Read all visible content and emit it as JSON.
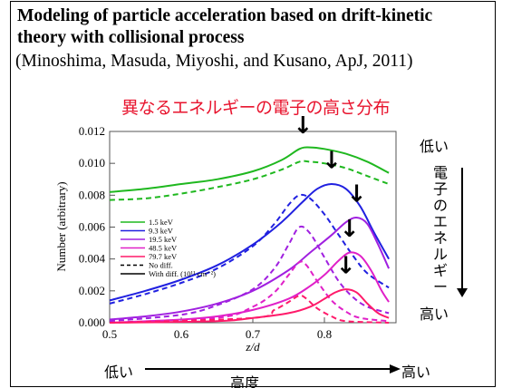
{
  "slide": {
    "title_line1": "Modeling of particle acceleration based on drift-kinetic",
    "title_line2": "theory with collisional process",
    "citation": "(Minoshima, Masuda, Miyoshi, and Kusano, ApJ, 2011)",
    "red_heading": "異なるエネルギーの電子の高さ分布",
    "right_top": "低い",
    "right_middle": "電子のエネルギー",
    "right_bottom": "高い",
    "bottom_left": "低い",
    "bottom_center": "高度",
    "bottom_right": "高い"
  },
  "chart_data": {
    "type": "line",
    "xlabel": "z/d",
    "ylabel": "Number (arbitrary)",
    "xlim": [
      0.5,
      0.9
    ],
    "ylim": [
      0.0,
      0.012
    ],
    "xticks": [
      "0.5",
      "0.6",
      "0.7",
      "0.8"
    ],
    "yticks": [
      "0.000",
      "0.002",
      "0.004",
      "0.006",
      "0.008",
      "0.010",
      "0.012"
    ],
    "legend": [
      "1.5 keV",
      "9.3 keV",
      "19.5 keV",
      "48.5 keV",
      "79.7 keV",
      "No diff.",
      "With diff. (10¹¹ cm⁻²)"
    ],
    "legend_colors": [
      "#1fb81f",
      "#2020e0",
      "#a020e0",
      "#e020c8",
      "#ff1a6a",
      "#000000",
      "#000000"
    ],
    "legend_styles": [
      "solid",
      "solid",
      "solid",
      "solid",
      "solid",
      "dashed",
      "solid"
    ],
    "series": [
      {
        "name": "1.5 keV",
        "style": "solid",
        "color": "#1fb81f",
        "x": [
          0.5,
          0.55,
          0.6,
          0.65,
          0.7,
          0.74,
          0.765,
          0.78,
          0.8,
          0.83,
          0.86,
          0.89
        ],
        "y": [
          0.0082,
          0.0084,
          0.0087,
          0.009,
          0.0095,
          0.0102,
          0.0109,
          0.011,
          0.0109,
          0.0106,
          0.0101,
          0.0094
        ]
      },
      {
        "name": "1.5 keV",
        "style": "dashed",
        "color": "#1fb81f",
        "x": [
          0.5,
          0.55,
          0.6,
          0.65,
          0.7,
          0.74,
          0.765,
          0.78,
          0.8,
          0.83,
          0.86,
          0.89
        ],
        "y": [
          0.0077,
          0.0078,
          0.0081,
          0.0085,
          0.009,
          0.0096,
          0.0101,
          0.0101,
          0.01,
          0.0097,
          0.0092,
          0.0087
        ]
      },
      {
        "name": "9.3 keV",
        "style": "solid",
        "color": "#2020e0",
        "x": [
          0.5,
          0.55,
          0.6,
          0.65,
          0.7,
          0.74,
          0.77,
          0.79,
          0.81,
          0.83,
          0.85,
          0.87,
          0.89
        ],
        "y": [
          0.0014,
          0.002,
          0.0027,
          0.0036,
          0.0049,
          0.0063,
          0.0076,
          0.0084,
          0.0087,
          0.0084,
          0.0073,
          0.0056,
          0.004
        ]
      },
      {
        "name": "9.3 keV",
        "style": "dashed",
        "color": "#2020e0",
        "x": [
          0.5,
          0.55,
          0.6,
          0.65,
          0.7,
          0.73,
          0.75,
          0.765,
          0.78,
          0.8,
          0.82,
          0.84,
          0.86,
          0.89
        ],
        "y": [
          0.0012,
          0.0018,
          0.0025,
          0.0034,
          0.0048,
          0.0062,
          0.0074,
          0.008,
          0.0078,
          0.0068,
          0.0055,
          0.0042,
          0.0031,
          0.0022
        ]
      },
      {
        "name": "19.5 keV",
        "style": "solid",
        "color": "#a020e0",
        "x": [
          0.5,
          0.55,
          0.6,
          0.65,
          0.7,
          0.75,
          0.78,
          0.81,
          0.83,
          0.845,
          0.86,
          0.875,
          0.89
        ],
        "y": [
          0.0002,
          0.0004,
          0.0007,
          0.0012,
          0.002,
          0.0033,
          0.0044,
          0.0055,
          0.0063,
          0.0066,
          0.0062,
          0.0049,
          0.0034
        ]
      },
      {
        "name": "19.5 keV",
        "style": "dashed",
        "color": "#a020e0",
        "x": [
          0.5,
          0.6,
          0.65,
          0.7,
          0.73,
          0.75,
          0.765,
          0.78,
          0.8,
          0.82,
          0.84,
          0.86,
          0.89
        ],
        "y": [
          0.0001,
          0.0005,
          0.0011,
          0.0021,
          0.0034,
          0.0049,
          0.006,
          0.0056,
          0.0041,
          0.0026,
          0.0016,
          0.001,
          0.0006
        ]
      },
      {
        "name": "48.5 keV",
        "style": "solid",
        "color": "#e020c8",
        "x": [
          0.5,
          0.6,
          0.65,
          0.7,
          0.75,
          0.78,
          0.8,
          0.82,
          0.835,
          0.85,
          0.865,
          0.88,
          0.89
        ],
        "y": [
          0.0,
          0.0002,
          0.0004,
          0.0008,
          0.0015,
          0.0023,
          0.003,
          0.0039,
          0.0044,
          0.0042,
          0.0033,
          0.002,
          0.0013
        ]
      },
      {
        "name": "48.5 keV",
        "style": "dashed",
        "color": "#e020c8",
        "x": [
          0.5,
          0.65,
          0.7,
          0.73,
          0.75,
          0.765,
          0.775,
          0.79,
          0.81,
          0.83,
          0.85,
          0.89
        ],
        "y": [
          0.0,
          0.0003,
          0.001,
          0.0019,
          0.003,
          0.0038,
          0.0036,
          0.0026,
          0.0014,
          0.0007,
          0.0003,
          0.0001
        ]
      },
      {
        "name": "79.7 keV",
        "style": "solid",
        "color": "#ff1a6a",
        "x": [
          0.5,
          0.65,
          0.7,
          0.75,
          0.78,
          0.8,
          0.815,
          0.83,
          0.845,
          0.86,
          0.875,
          0.89
        ],
        "y": [
          0.0,
          0.0001,
          0.0003,
          0.0006,
          0.001,
          0.0015,
          0.0019,
          0.0021,
          0.0019,
          0.0012,
          0.0006,
          0.0003
        ]
      },
      {
        "name": "79.7 keV",
        "style": "dashed",
        "color": "#ff1a6a",
        "x": [
          0.5,
          0.7,
          0.73,
          0.75,
          0.765,
          0.775,
          0.79,
          0.81,
          0.83,
          0.89
        ],
        "y": [
          0.0,
          0.0003,
          0.0008,
          0.0013,
          0.0017,
          0.0015,
          0.0009,
          0.0004,
          0.0001,
          0.0
        ]
      }
    ],
    "annotations": [
      {
        "text": "↓",
        "x": 0.77,
        "y": 0.0119
      },
      {
        "text": "↓",
        "x": 0.81,
        "y": 0.0097
      },
      {
        "text": "↓",
        "x": 0.845,
        "y": 0.0076
      },
      {
        "text": "↓",
        "x": 0.835,
        "y": 0.0054
      },
      {
        "text": "↓",
        "x": 0.83,
        "y": 0.0031
      }
    ]
  }
}
